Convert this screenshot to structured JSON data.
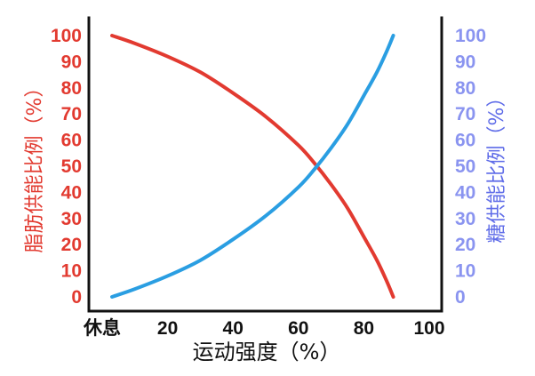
{
  "chart_data": {
    "type": "line",
    "xlabel": "运动强度（%）",
    "ylabel_left": "脂肪供能比例（%）",
    "ylabel_right": "糖供能比例（%）",
    "x_ticks": [
      "休息",
      "20",
      "40",
      "60",
      "80",
      "100"
    ],
    "y_ticks_left": [
      "0",
      "10",
      "20",
      "30",
      "40",
      "50",
      "60",
      "70",
      "80",
      "90",
      "100"
    ],
    "y_ticks_right": [
      "0",
      "10",
      "20",
      "30",
      "40",
      "50",
      "60",
      "70",
      "80",
      "90",
      "100"
    ],
    "xlim": [
      0,
      100
    ],
    "ylim": [
      0,
      100
    ],
    "grid": false,
    "series": [
      {
        "axis": "left",
        "color": "#e23a30",
        "x": [
          3,
          10,
          20,
          30,
          40,
          50,
          60,
          65,
          70,
          75,
          80,
          84,
          87,
          89
        ],
        "y": [
          100,
          97,
          92,
          86,
          78,
          69,
          58,
          51,
          43,
          34,
          23,
          14,
          6,
          0
        ]
      },
      {
        "axis": "right",
        "color": "#2a9ee2",
        "x": [
          3,
          10,
          20,
          30,
          40,
          50,
          60,
          65,
          70,
          75,
          80,
          84,
          87,
          89
        ],
        "y": [
          0,
          3,
          8,
          14,
          22,
          31,
          42,
          49,
          57,
          66,
          77,
          86,
          94,
          100
        ]
      }
    ]
  }
}
